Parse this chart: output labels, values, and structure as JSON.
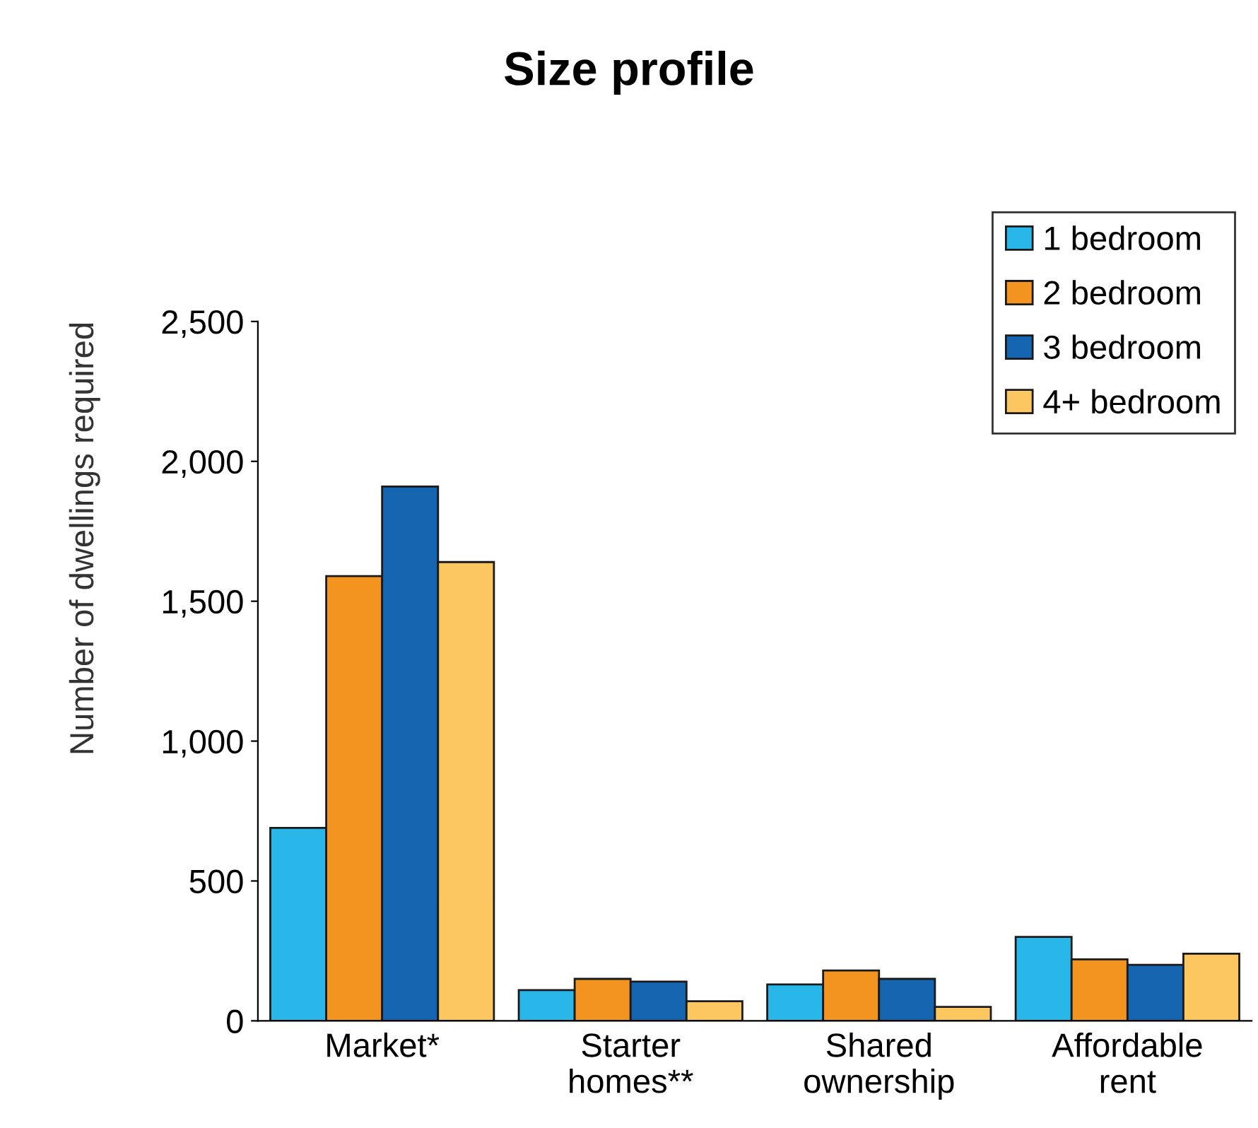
{
  "chart_data": {
    "type": "bar",
    "title": "Size profile",
    "ylabel": "Number of dwellings required",
    "categories": [
      "Market*",
      "Starter\nhomes**",
      "Shared\nownership",
      "Affordable\nrent"
    ],
    "series": [
      {
        "name": "1 bedroom",
        "color": "#29b6e8",
        "values": [
          690,
          110,
          130,
          300
        ]
      },
      {
        "name": "2 bedroom",
        "color": "#f39320",
        "values": [
          1590,
          150,
          180,
          220
        ]
      },
      {
        "name": "3 bedroom",
        "color": "#1565b0",
        "values": [
          1910,
          140,
          150,
          200
        ]
      },
      {
        "name": "4+ bedroom",
        "color": "#fcc660",
        "values": [
          1640,
          70,
          50,
          240
        ]
      }
    ],
    "ylim": [
      0,
      2500
    ],
    "yticks": [
      0,
      500,
      {
        "value": 1000,
        "label": "1,000"
      },
      {
        "value": 1500,
        "label": "1,500"
      },
      {
        "value": 2000,
        "label": "2,000"
      },
      {
        "value": 2500,
        "label": "2,500"
      }
    ],
    "grid": false,
    "legend": "top right"
  }
}
